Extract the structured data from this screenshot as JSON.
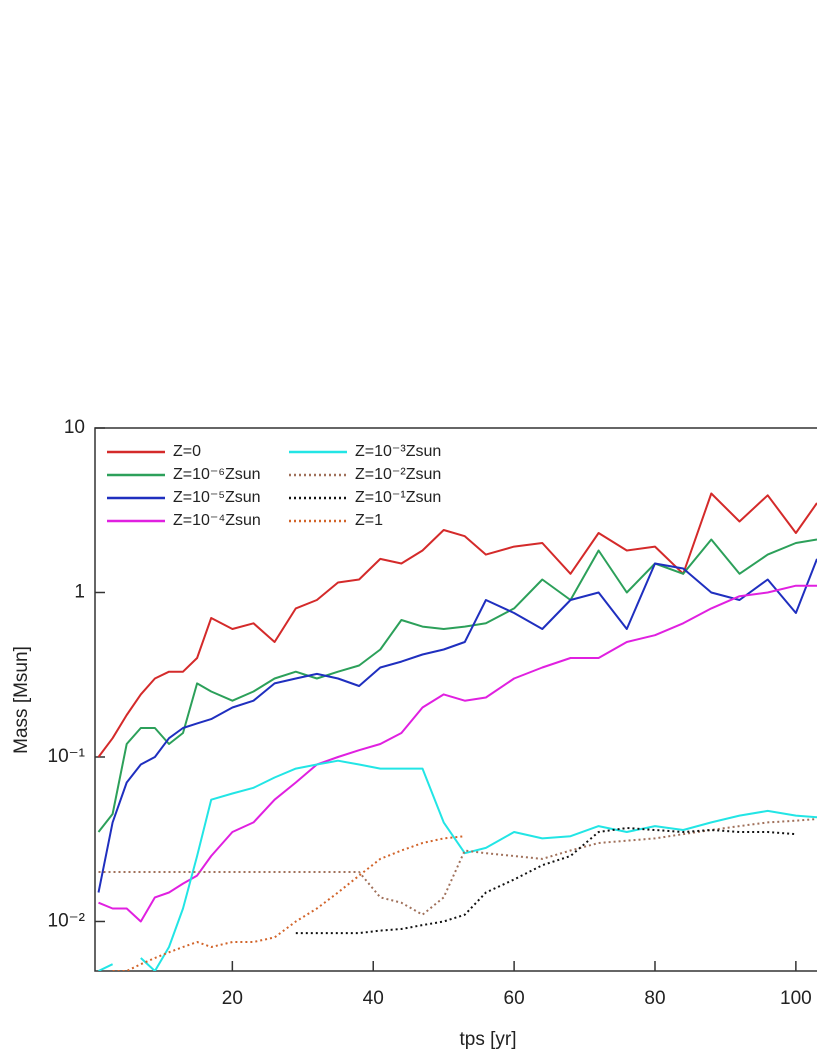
{
  "chart_data": {
    "type": "line",
    "xlabel": "tps [yr]",
    "ylabel": "Mass [Msun]",
    "log_y": true,
    "legend": "upper left",
    "xlim": [
      0.5,
      103
    ],
    "ylim": [
      0.005,
      10
    ],
    "xticks": [
      20,
      40,
      60,
      80,
      100
    ],
    "yticks": [
      {
        "value": 0.01,
        "label": "10⁻²"
      },
      {
        "value": 0.1,
        "label": "10⁻¹"
      },
      1,
      10
    ],
    "x": [
      1,
      3,
      5,
      7,
      9,
      11,
      13,
      15,
      17,
      20,
      23,
      26,
      29,
      32,
      35,
      38,
      41,
      44,
      47,
      50,
      53,
      56,
      60,
      64,
      68,
      72,
      76,
      80,
      84,
      88,
      92,
      96,
      100,
      103
    ],
    "series": [
      {
        "name": "Z=0",
        "color": "#d42a2a",
        "linestyle": "solid",
        "values": [
          0.1,
          0.13,
          0.18,
          0.24,
          0.3,
          0.33,
          0.33,
          0.4,
          0.7,
          0.6,
          0.65,
          0.5,
          0.8,
          0.9,
          1.15,
          1.2,
          1.6,
          1.5,
          1.8,
          2.4,
          2.2,
          1.7,
          1.9,
          2.0,
          1.3,
          2.3,
          1.8,
          1.9,
          1.3,
          4.0,
          2.7,
          3.9,
          2.3,
          3.5
        ]
      },
      {
        "name": "Z=10⁻⁶Zsun",
        "color": "#2ca05a",
        "linestyle": "solid",
        "values": [
          0.035,
          0.045,
          0.12,
          0.15,
          0.15,
          0.12,
          0.14,
          0.28,
          0.25,
          0.22,
          0.25,
          0.3,
          0.33,
          0.3,
          0.33,
          0.36,
          0.45,
          0.68,
          0.62,
          0.6,
          0.62,
          0.65,
          0.8,
          1.2,
          0.9,
          1.8,
          1.0,
          1.5,
          1.3,
          2.1,
          1.3,
          1.7,
          2.0,
          2.1
        ]
      },
      {
        "name": "Z=10⁻⁵Zsun",
        "color": "#1f2fbf",
        "linestyle": "solid",
        "values": [
          0.015,
          0.04,
          0.07,
          0.09,
          0.1,
          0.13,
          0.15,
          0.16,
          0.17,
          0.2,
          0.22,
          0.28,
          0.3,
          0.32,
          0.3,
          0.27,
          0.35,
          0.38,
          0.42,
          0.45,
          0.5,
          0.9,
          0.75,
          0.6,
          0.9,
          1.0,
          0.6,
          1.5,
          1.4,
          1.0,
          0.9,
          1.2,
          0.75,
          1.6
        ]
      },
      {
        "name": "Z=10⁻⁴Zsun",
        "color": "#e020e0",
        "linestyle": "solid",
        "values": [
          0.013,
          0.012,
          0.012,
          0.01,
          0.014,
          0.015,
          0.017,
          0.019,
          0.025,
          0.035,
          0.04,
          0.055,
          0.07,
          0.09,
          0.1,
          0.11,
          0.12,
          0.14,
          0.2,
          0.24,
          0.22,
          0.23,
          0.3,
          0.35,
          0.4,
          0.4,
          0.5,
          0.55,
          0.65,
          0.8,
          0.95,
          1.0,
          1.1,
          1.1
        ]
      },
      {
        "name": "Z=10⁻³Zsun",
        "color": "#22e5e5",
        "linestyle": "solid",
        "values": [
          0.005,
          0.0055,
          null,
          0.006,
          0.005,
          0.007,
          0.012,
          0.025,
          0.055,
          0.06,
          0.065,
          0.075,
          0.085,
          0.09,
          0.095,
          0.09,
          0.085,
          0.085,
          0.085,
          0.04,
          0.026,
          0.028,
          0.035,
          0.032,
          0.033,
          0.038,
          0.035,
          0.038,
          0.036,
          0.04,
          0.044,
          0.047,
          0.044,
          0.043
        ]
      },
      {
        "name": "Z=10⁻²Zsun",
        "color": "#a0705a",
        "linestyle": "dotted",
        "values": [
          0.02,
          0.02,
          0.02,
          0.02,
          0.02,
          0.02,
          0.02,
          0.02,
          0.02,
          0.02,
          0.02,
          0.02,
          0.02,
          0.02,
          0.02,
          0.02,
          0.014,
          0.013,
          0.011,
          0.014,
          0.027,
          0.026,
          0.025,
          0.024,
          0.027,
          0.03,
          0.031,
          0.032,
          0.034,
          0.036,
          0.038,
          0.04,
          0.041,
          0.042
        ]
      },
      {
        "name": "Z=10⁻¹Zsun",
        "color": "#111111",
        "linestyle": "dotted",
        "values": [
          null,
          null,
          null,
          null,
          null,
          null,
          null,
          null,
          null,
          null,
          null,
          null,
          0.0085,
          0.0085,
          0.0085,
          0.0085,
          0.0088,
          0.009,
          0.0095,
          0.01,
          0.011,
          0.015,
          0.018,
          0.022,
          0.025,
          0.035,
          0.037,
          0.036,
          0.035,
          0.036,
          0.035,
          0.035,
          0.034,
          null
        ]
      },
      {
        "name": "Z=1",
        "color": "#d2642a",
        "linestyle": "dotted",
        "values": [
          null,
          0.005,
          0.005,
          0.0055,
          0.006,
          0.0065,
          0.007,
          0.0075,
          0.007,
          0.0075,
          0.0075,
          0.008,
          0.01,
          0.012,
          0.015,
          0.019,
          0.024,
          0.027,
          0.03,
          0.032,
          0.033,
          null,
          null,
          null,
          null,
          null,
          null,
          null,
          null,
          null,
          null,
          null,
          null,
          null
        ]
      }
    ]
  }
}
